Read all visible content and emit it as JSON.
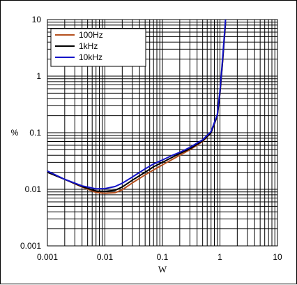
{
  "chart_data": {
    "type": "line",
    "title": "",
    "xlabel": "W",
    "ylabel": "%",
    "x_scale": "log",
    "y_scale": "log",
    "xlim": [
      0.001,
      10
    ],
    "ylim": [
      0.001,
      10
    ],
    "x_ticks": [
      "0.001",
      "0.01",
      "0.1",
      "1",
      "10"
    ],
    "y_ticks": [
      "0.001",
      "0.01",
      "0.1",
      "1",
      "10"
    ],
    "grid": true,
    "legend_position": "top-left",
    "series": [
      {
        "name": "100Hz",
        "color": "#b5501e",
        "x": [
          0.001,
          0.002,
          0.004,
          0.007,
          0.01,
          0.015,
          0.02,
          0.03,
          0.05,
          0.07,
          0.1,
          0.15,
          0.2,
          0.3,
          0.5,
          0.7,
          0.9,
          1.0,
          1.1,
          1.25
        ],
        "y": [
          0.02,
          0.015,
          0.011,
          0.0088,
          0.0085,
          0.0087,
          0.0098,
          0.013,
          0.018,
          0.022,
          0.027,
          0.034,
          0.04,
          0.05,
          0.07,
          0.1,
          0.2,
          0.5,
          1.6,
          9.0
        ]
      },
      {
        "name": "1kHz",
        "color": "#000000",
        "x": [
          0.001,
          0.002,
          0.004,
          0.007,
          0.01,
          0.015,
          0.02,
          0.03,
          0.05,
          0.07,
          0.1,
          0.15,
          0.2,
          0.3,
          0.5,
          0.7,
          0.9,
          1.0,
          1.1,
          1.25
        ],
        "y": [
          0.02,
          0.015,
          0.0112,
          0.0093,
          0.0092,
          0.0096,
          0.011,
          0.0145,
          0.02,
          0.025,
          0.03,
          0.037,
          0.043,
          0.052,
          0.072,
          0.1,
          0.2,
          0.5,
          1.6,
          9.0
        ]
      },
      {
        "name": "10kHz",
        "color": "#1414c8",
        "x": [
          0.001,
          0.002,
          0.004,
          0.007,
          0.01,
          0.015,
          0.02,
          0.03,
          0.05,
          0.07,
          0.1,
          0.15,
          0.2,
          0.3,
          0.5,
          0.7,
          0.9,
          1.0,
          1.1,
          1.25
        ],
        "y": [
          0.021,
          0.015,
          0.0115,
          0.0102,
          0.0103,
          0.0112,
          0.0128,
          0.0165,
          0.023,
          0.028,
          0.033,
          0.04,
          0.045,
          0.055,
          0.075,
          0.105,
          0.21,
          0.55,
          1.8,
          10.0
        ]
      }
    ]
  }
}
